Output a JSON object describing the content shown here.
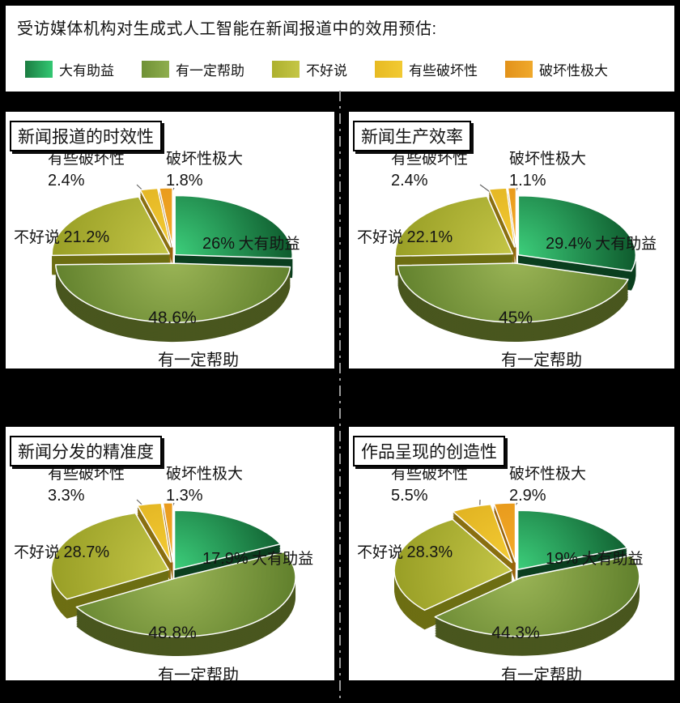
{
  "header": {
    "title": "受访媒体机构对生成式人工智能在新闻报道中的效用预估:"
  },
  "legend": {
    "items": [
      {
        "label": "大有助益",
        "c1": "#1b7c41",
        "c2": "#33c873"
      },
      {
        "label": "有一定帮助",
        "c1": "#6f9135",
        "c2": "#8fae4e"
      },
      {
        "label": "不好说",
        "c1": "#adb02e",
        "c2": "#c5c646"
      },
      {
        "label": "有些破坏性",
        "c1": "#e7ba22",
        "c2": "#f2ca33"
      },
      {
        "label": "破坏性极大",
        "c1": "#e2921a",
        "c2": "#f0a92c"
      }
    ]
  },
  "palette": {
    "slices": [
      {
        "name": "大有助益",
        "inner": "#3dd07c",
        "outer": "#0f5c2e",
        "side": "#0b3f1f"
      },
      {
        "name": "有一定帮助",
        "inner": "#9cb657",
        "outer": "#63822e",
        "side": "#49561e"
      },
      {
        "name": "不好说",
        "inner": "#c6c748",
        "outer": "#9aa027",
        "side": "#6d6e13"
      },
      {
        "name": "有些破坏性",
        "inner": "#f6ce36",
        "outer": "#d9a91a",
        "side": "#8a6f10"
      },
      {
        "name": "破坏性极大",
        "inner": "#f5ad2b",
        "outer": "#e08f13",
        "side": "#9a640c"
      }
    ]
  },
  "chart_data": [
    {
      "type": "pie",
      "title": "新闻报道的时效性",
      "labels": [
        "大有助益",
        "有一定帮助",
        "不好说",
        "有些破坏性",
        "破坏性极大"
      ],
      "values": [
        26,
        48.6,
        21.2,
        2.4,
        1.8
      ],
      "value_labels": [
        "26%",
        "48.6%",
        "21.2%",
        "2.4%",
        "1.8%"
      ],
      "legend_position": "none",
      "start_angle": "12-oclock-clockwise"
    },
    {
      "type": "pie",
      "title": "新闻生产效率",
      "labels": [
        "大有助益",
        "有一定帮助",
        "不好说",
        "有些破坏性",
        "破坏性极大"
      ],
      "values": [
        29.4,
        45,
        22.1,
        2.4,
        1.1
      ],
      "value_labels": [
        "29.4%",
        "45%",
        "22.1%",
        "2.4%",
        "1.1%"
      ],
      "legend_position": "none",
      "start_angle": "12-oclock-clockwise"
    },
    {
      "type": "pie",
      "title": "新闻分发的精准度",
      "labels": [
        "大有助益",
        "有一定帮助",
        "不好说",
        "有些破坏性",
        "破坏性极大"
      ],
      "values": [
        17.9,
        48.8,
        28.7,
        3.3,
        1.3
      ],
      "value_labels": [
        "17.9%",
        "48.8%",
        "28.7%",
        "3.3%",
        "1.3%"
      ],
      "legend_position": "none",
      "start_angle": "12-oclock-clockwise"
    },
    {
      "type": "pie",
      "title": "作品呈现的创造性",
      "labels": [
        "大有助益",
        "有一定帮助",
        "不好说",
        "有些破坏性",
        "破坏性极大"
      ],
      "values": [
        19,
        44.3,
        28.3,
        5.5,
        2.9
      ],
      "value_labels": [
        "19%",
        "44.3%",
        "28.3%",
        "5.5%",
        "2.9%"
      ],
      "legend_position": "none",
      "start_angle": "12-oclock-clockwise"
    }
  ]
}
